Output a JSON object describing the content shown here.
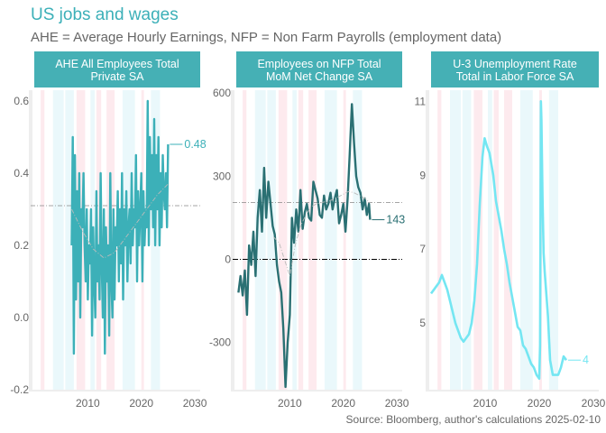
{
  "title": "US jobs and wages",
  "subtitle": "AHE = Average Hourly Earnings, NFP = Non Farm Payrolls (employment data)",
  "source": "Source: Bloomberg, author's calculations 2025-02-10",
  "colors": {
    "teal": "#3cb0b8",
    "dark_teal": "#2a7073",
    "light_cyan": "#74e6f2",
    "header_bg": "#45b0b5",
    "band_pink": "#fde8ec",
    "band_cyan": "#e8f7fb",
    "grey_text": "#666666"
  },
  "chart_data": [
    {
      "type": "line",
      "panel_title": [
        "AHE All Employees Total",
        "Private SA"
      ],
      "xlim": [
        2000,
        2031
      ],
      "xticks": [
        "2010",
        "2020",
        "2030"
      ],
      "ylim": [
        -0.2,
        0.63
      ],
      "yticks": [
        "-0.2",
        "0.0",
        "0.2",
        "0.4",
        "0.6"
      ],
      "reference_line": 0.31,
      "last_label": "0.48",
      "series": [
        {
          "style": "monthly",
          "x": [
            2007.0,
            2007.2,
            2007.4,
            2007.6,
            2007.8,
            2008.0,
            2008.2,
            2008.4,
            2008.6,
            2008.8,
            2009.0,
            2009.2,
            2009.4,
            2009.6,
            2009.8,
            2010.0,
            2010.2,
            2010.4,
            2010.6,
            2010.8,
            2011.0,
            2011.2,
            2011.4,
            2011.6,
            2011.8,
            2012.0,
            2012.2,
            2012.4,
            2012.6,
            2012.8,
            2013.0,
            2013.2,
            2013.4,
            2013.6,
            2013.8,
            2014.0,
            2014.2,
            2014.4,
            2014.6,
            2014.8,
            2015.0,
            2015.2,
            2015.4,
            2015.6,
            2015.8,
            2016.0,
            2016.2,
            2016.4,
            2016.6,
            2016.8,
            2017.0,
            2017.2,
            2017.4,
            2017.6,
            2017.8,
            2018.0,
            2018.2,
            2018.4,
            2018.6,
            2018.8,
            2019.0,
            2019.2,
            2019.4,
            2019.6,
            2019.8,
            2020.0,
            2020.2,
            2020.4,
            2020.6,
            2020.8,
            2021.0,
            2021.2,
            2021.4,
            2021.6,
            2021.8,
            2022.0,
            2022.2,
            2022.4,
            2022.6,
            2022.8,
            2023.0,
            2023.2,
            2023.4,
            2023.6,
            2023.8,
            2024.0,
            2024.2,
            2024.4,
            2024.6,
            2024.8,
            2025.0
          ],
          "y": [
            0.2,
            0.5,
            -0.1,
            0.45,
            0.05,
            0.35,
            0.1,
            0.4,
            0.0,
            0.3,
            0.25,
            0.4,
            0.2,
            0.1,
            0.3,
            0.05,
            0.2,
            0.15,
            0.3,
            -0.05,
            0.25,
            0.1,
            0.0,
            0.35,
            0.1,
            0.2,
            0.05,
            0.4,
            0.15,
            0.0,
            0.3,
            -0.1,
            0.25,
            0.1,
            0.2,
            -0.05,
            0.4,
            0.1,
            0.0,
            0.3,
            0.05,
            0.25,
            0.2,
            0.35,
            0.1,
            0.3,
            0.15,
            0.4,
            0.05,
            0.3,
            0.2,
            0.35,
            0.1,
            0.25,
            0.3,
            0.15,
            0.4,
            0.2,
            0.3,
            0.25,
            0.45,
            0.1,
            0.35,
            0.2,
            0.3,
            0.4,
            0.1,
            0.35,
            0.2,
            0.3,
            0.25,
            0.6,
            0.2,
            0.5,
            0.3,
            0.45,
            0.25,
            0.55,
            0.2,
            0.45,
            0.3,
            0.5,
            0.2,
            0.4,
            0.25,
            0.45,
            0.35,
            0.3,
            0.4,
            0.25,
            0.48
          ]
        },
        {
          "style": "trend",
          "x": [
            2007,
            2009,
            2011,
            2013,
            2015,
            2017,
            2019,
            2021,
            2023,
            2025
          ],
          "y": [
            0.3,
            0.24,
            0.19,
            0.165,
            0.18,
            0.22,
            0.26,
            0.3,
            0.34,
            0.37
          ]
        }
      ]
    },
    {
      "type": "line",
      "panel_title": [
        "Employees on NFP Total",
        "MoM Net Change SA"
      ],
      "xlim": [
        2000,
        2031
      ],
      "xticks": [
        "2010",
        "2020",
        "2030"
      ],
      "ylim": [
        -470,
        610
      ],
      "yticks": [
        "-300",
        "0",
        "300",
        "600"
      ],
      "reference_line": 205,
      "zero_line": 0,
      "last_label": "143",
      "series": [
        {
          "style": "monthly",
          "x": [
            2000.4,
            2000.8,
            2001.2,
            2001.6,
            2002.0,
            2002.4,
            2002.8,
            2003.2,
            2003.6,
            2004.0,
            2004.4,
            2004.8,
            2005.2,
            2005.6,
            2006.0,
            2006.4,
            2006.8,
            2007.2,
            2007.6,
            2008.0,
            2008.4,
            2008.8,
            2009.2,
            2009.6,
            2010.0,
            2010.4,
            2010.8,
            2011.2,
            2011.6,
            2012.0,
            2012.4,
            2012.8,
            2013.2,
            2013.6,
            2014.0,
            2014.4,
            2014.8,
            2015.2,
            2015.6,
            2016.0,
            2016.4,
            2016.8,
            2017.2,
            2017.6,
            2018.0,
            2018.4,
            2018.8,
            2019.2,
            2019.6,
            2020.0,
            2020.4,
            2020.8,
            2021.2,
            2021.6,
            2022.0,
            2022.4,
            2022.8,
            2023.2,
            2023.6,
            2024.0,
            2024.4,
            2024.8,
            2025.0
          ],
          "y": [
            -120,
            -60,
            -130,
            -40,
            -200,
            50,
            -20,
            100,
            -60,
            150,
            250,
            100,
            330,
            150,
            280,
            200,
            120,
            90,
            -20,
            -80,
            -120,
            -250,
            -460,
            -300,
            -200,
            150,
            60,
            180,
            100,
            250,
            110,
            170,
            200,
            150,
            140,
            280,
            250,
            220,
            160,
            150,
            230,
            180,
            200,
            240,
            180,
            220,
            250,
            130,
            160,
            200,
            100,
            220,
            380,
            560,
            420,
            300,
            260,
            240,
            180,
            220,
            160,
            200,
            143
          ]
        },
        {
          "style": "trend",
          "x": [
            2007,
            2008,
            2009,
            2010,
            2011,
            2012,
            2013,
            2014,
            2015,
            2016,
            2017,
            2018,
            2019,
            2020,
            2021,
            2022,
            2023,
            2024,
            2025
          ],
          "y": [
            80,
            60,
            0,
            -60,
            50,
            120,
            160,
            190,
            200,
            205,
            210,
            215,
            225,
            235,
            245,
            240,
            230,
            220,
            205
          ]
        }
      ]
    },
    {
      "type": "line",
      "panel_title": [
        "U-3 Unemployment Rate",
        "Total in Labor Force SA"
      ],
      "xlim": [
        2000,
        2031
      ],
      "xticks": [
        "2010",
        "2020",
        "2030"
      ],
      "ylim": [
        3.2,
        11.3
      ],
      "yticks": [
        "5",
        "7",
        "9",
        "11"
      ],
      "last_label": "4",
      "series": [
        {
          "style": "monthly",
          "x": [
            2000.0,
            2000.5,
            2001.0,
            2001.5,
            2002.0,
            2002.5,
            2003.0,
            2003.5,
            2004.0,
            2004.5,
            2005.0,
            2005.5,
            2006.0,
            2006.5,
            2007.0,
            2007.5,
            2008.0,
            2008.5,
            2009.0,
            2009.5,
            2009.9,
            2010.3,
            2010.8,
            2011.5,
            2012.0,
            2012.5,
            2013.0,
            2013.5,
            2014.0,
            2014.5,
            2015.0,
            2015.5,
            2016.0,
            2016.5,
            2017.0,
            2017.5,
            2018.0,
            2018.5,
            2019.0,
            2019.5,
            2020.0,
            2020.15,
            2020.3,
            2020.4,
            2020.6,
            2020.8,
            2021.0,
            2021.3,
            2021.6,
            2022.0,
            2022.5,
            2023.0,
            2023.5,
            2024.0,
            2024.5,
            2025.0
          ],
          "y": [
            5.8,
            5.9,
            6.0,
            6.1,
            6.3,
            6.1,
            5.9,
            5.6,
            5.3,
            5.0,
            4.8,
            4.6,
            4.5,
            4.6,
            4.7,
            5.0,
            5.6,
            6.6,
            8.2,
            9.5,
            10.0,
            9.8,
            9.6,
            9.0,
            8.3,
            7.9,
            7.5,
            7.0,
            6.6,
            6.1,
            5.7,
            5.3,
            4.9,
            4.8,
            4.4,
            4.3,
            4.1,
            3.9,
            3.8,
            3.6,
            3.5,
            4.4,
            11.0,
            10.5,
            8.4,
            6.9,
            6.4,
            5.8,
            5.2,
            4.0,
            3.6,
            3.6,
            3.6,
            3.8,
            4.1,
            4.0
          ]
        }
      ]
    }
  ]
}
